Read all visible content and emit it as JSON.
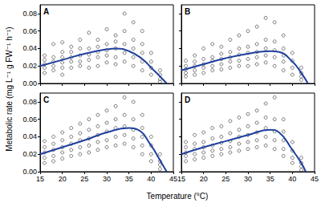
{
  "chart_data": {
    "type": "scatter",
    "xlabel": "Temperature (°C)",
    "ylabel": "Metabolic rate (mg L⁻¹ g FW⁻¹ h⁻¹)",
    "xlim": [
      15,
      45
    ],
    "xticks": [
      15,
      20,
      25,
      30,
      35,
      40,
      45
    ],
    "ylim": [
      0,
      0.09
    ],
    "yticks": [
      {
        "value": 0,
        "label": "0.00"
      },
      0.02,
      0.04,
      0.06,
      0.08
    ],
    "grid": false,
    "panels": [
      {
        "title": "A",
        "tick_labels": "y",
        "series": [
          {
            "type": "scatter",
            "color": "#333333",
            "marker": "circle-open",
            "x": [
              16,
              16,
              16,
              16,
              16,
              18,
              18,
              18,
              18,
              18,
              20,
              20,
              20,
              20,
              20,
              20,
              22,
              22,
              22,
              22,
              22,
              24,
              24,
              24,
              24,
              24,
              26,
              26,
              26,
              26,
              26,
              28,
              28,
              28,
              28,
              28,
              30,
              30,
              30,
              30,
              30,
              32,
              32,
              32,
              32,
              32,
              34,
              34,
              34,
              34,
              34,
              36,
              36,
              36,
              36,
              36,
              38,
              38,
              38,
              38,
              38,
              40,
              40,
              40,
              40,
              42,
              42,
              42,
              42
            ],
            "values": [
              0.012,
              0.018,
              0.022,
              0.027,
              0.032,
              0.015,
              0.02,
              0.025,
              0.03,
              0.045,
              0.01,
              0.018,
              0.024,
              0.03,
              0.036,
              0.047,
              0.018,
              0.025,
              0.03,
              0.036,
              0.042,
              0.02,
              0.025,
              0.032,
              0.04,
              0.05,
              0.018,
              0.027,
              0.033,
              0.04,
              0.058,
              0.02,
              0.03,
              0.036,
              0.042,
              0.05,
              0.024,
              0.032,
              0.038,
              0.045,
              0.062,
              0.022,
              0.03,
              0.04,
              0.048,
              0.055,
              0.025,
              0.035,
              0.045,
              0.06,
              0.08,
              0.02,
              0.03,
              0.04,
              0.05,
              0.07,
              0.015,
              0.025,
              0.035,
              0.045,
              0.06,
              0.01,
              0.018,
              0.025,
              0.035,
              0.002,
              0.005,
              0.01,
              0.015
            ]
          },
          {
            "type": "line",
            "color": "#1f3f9f",
            "x": [
              15,
              20,
              25,
              30,
              32,
              35,
              38,
              40,
              42,
              43.5
            ],
            "values": [
              0.02,
              0.027,
              0.034,
              0.039,
              0.04,
              0.037,
              0.028,
              0.018,
              0.008,
              0.0
            ]
          }
        ]
      },
      {
        "title": "B",
        "tick_labels": false,
        "series": [
          {
            "type": "scatter",
            "color": "#333333",
            "marker": "circle-open",
            "x": [
              16,
              16,
              16,
              16,
              16,
              18,
              18,
              18,
              18,
              18,
              20,
              20,
              20,
              20,
              20,
              22,
              22,
              22,
              22,
              22,
              24,
              24,
              24,
              24,
              24,
              26,
              26,
              26,
              26,
              26,
              28,
              28,
              28,
              28,
              28,
              30,
              30,
              30,
              30,
              30,
              32,
              32,
              32,
              32,
              32,
              34,
              34,
              34,
              34,
              34,
              36,
              36,
              36,
              36,
              36,
              38,
              38,
              38,
              38,
              38,
              40,
              40,
              40,
              40,
              42,
              42,
              42,
              42
            ],
            "values": [
              0.008,
              0.012,
              0.016,
              0.02,
              0.026,
              0.01,
              0.015,
              0.02,
              0.025,
              0.032,
              0.012,
              0.018,
              0.022,
              0.028,
              0.04,
              0.015,
              0.02,
              0.026,
              0.03,
              0.045,
              0.016,
              0.022,
              0.028,
              0.034,
              0.042,
              0.018,
              0.025,
              0.03,
              0.036,
              0.05,
              0.02,
              0.026,
              0.033,
              0.04,
              0.055,
              0.02,
              0.028,
              0.035,
              0.042,
              0.06,
              0.022,
              0.03,
              0.036,
              0.045,
              0.065,
              0.024,
              0.032,
              0.04,
              0.05,
              0.075,
              0.02,
              0.03,
              0.038,
              0.048,
              0.07,
              0.015,
              0.025,
              0.032,
              0.04,
              0.055,
              0.01,
              0.018,
              0.026,
              0.035,
              0.004,
              0.008,
              0.012,
              0.018
            ]
          },
          {
            "type": "line",
            "color": "#1f3f9f",
            "x": [
              15,
              20,
              25,
              30,
              35,
              37,
              40,
              42,
              43.5
            ],
            "values": [
              0.015,
              0.022,
              0.029,
              0.034,
              0.037,
              0.036,
              0.025,
              0.012,
              0.0
            ]
          }
        ]
      },
      {
        "title": "C",
        "tick_labels": true,
        "series": [
          {
            "type": "scatter",
            "color": "#333333",
            "marker": "circle-open",
            "x": [
              16,
              16,
              16,
              16,
              16,
              18,
              18,
              18,
              18,
              18,
              20,
              20,
              20,
              20,
              20,
              22,
              22,
              22,
              22,
              22,
              24,
              24,
              24,
              24,
              24,
              26,
              26,
              26,
              26,
              26,
              28,
              28,
              28,
              28,
              28,
              30,
              30,
              30,
              30,
              30,
              32,
              32,
              32,
              32,
              32,
              34,
              34,
              34,
              34,
              34,
              36,
              36,
              36,
              36,
              36,
              38,
              38,
              38,
              38,
              38,
              40,
              40,
              40,
              40,
              42,
              42,
              42,
              42
            ],
            "values": [
              0.01,
              0.016,
              0.022,
              0.028,
              0.035,
              0.012,
              0.018,
              0.025,
              0.032,
              0.04,
              0.015,
              0.022,
              0.028,
              0.036,
              0.045,
              0.018,
              0.025,
              0.032,
              0.04,
              0.05,
              0.02,
              0.028,
              0.036,
              0.044,
              0.055,
              0.022,
              0.03,
              0.038,
              0.048,
              0.06,
              0.025,
              0.034,
              0.042,
              0.052,
              0.065,
              0.028,
              0.036,
              0.046,
              0.056,
              0.07,
              0.03,
              0.04,
              0.05,
              0.06,
              0.075,
              0.032,
              0.042,
              0.052,
              0.065,
              0.085,
              0.028,
              0.038,
              0.048,
              0.06,
              0.08,
              0.02,
              0.03,
              0.04,
              0.05,
              0.065,
              0.012,
              0.02,
              0.03,
              0.04,
              0.003,
              0.008,
              0.012,
              0.02
            ]
          },
          {
            "type": "line",
            "color": "#1f3f9f",
            "x": [
              15,
              20,
              25,
              30,
              35,
              37,
              40,
              42,
              43.5
            ],
            "values": [
              0.02,
              0.028,
              0.036,
              0.045,
              0.05,
              0.048,
              0.03,
              0.013,
              0.0
            ]
          }
        ]
      },
      {
        "title": "D",
        "tick_labels": "x",
        "series": [
          {
            "type": "scatter",
            "color": "#333333",
            "marker": "circle-open",
            "x": [
              16,
              16,
              16,
              16,
              16,
              18,
              18,
              18,
              18,
              18,
              20,
              20,
              20,
              20,
              20,
              22,
              22,
              22,
              22,
              22,
              24,
              24,
              24,
              24,
              24,
              26,
              26,
              26,
              26,
              26,
              28,
              28,
              28,
              28,
              28,
              30,
              30,
              30,
              30,
              30,
              32,
              32,
              32,
              32,
              32,
              34,
              34,
              34,
              34,
              34,
              36,
              36,
              36,
              36,
              36,
              38,
              38,
              38,
              38,
              38,
              40,
              40,
              40,
              40,
              42,
              42,
              42,
              42
            ],
            "values": [
              0.012,
              0.018,
              0.022,
              0.028,
              0.034,
              0.014,
              0.02,
              0.026,
              0.032,
              0.042,
              0.016,
              0.022,
              0.028,
              0.034,
              0.045,
              0.018,
              0.024,
              0.03,
              0.038,
              0.05,
              0.02,
              0.026,
              0.033,
              0.04,
              0.052,
              0.022,
              0.028,
              0.035,
              0.044,
              0.058,
              0.024,
              0.032,
              0.04,
              0.048,
              0.062,
              0.026,
              0.034,
              0.042,
              0.052,
              0.066,
              0.028,
              0.036,
              0.045,
              0.056,
              0.07,
              0.03,
              0.04,
              0.05,
              0.062,
              0.078,
              0.026,
              0.036,
              0.046,
              0.06,
              0.085,
              0.018,
              0.026,
              0.036,
              0.046,
              0.06,
              0.01,
              0.016,
              0.024,
              0.034,
              0.002,
              0.006,
              0.01,
              0.016
            ]
          },
          {
            "type": "line",
            "color": "#1f3f9f",
            "x": [
              15,
              20,
              25,
              30,
              35,
              37,
              40,
              42,
              43
            ],
            "values": [
              0.02,
              0.028,
              0.035,
              0.042,
              0.048,
              0.045,
              0.025,
              0.01,
              0.0
            ]
          }
        ]
      }
    ]
  }
}
